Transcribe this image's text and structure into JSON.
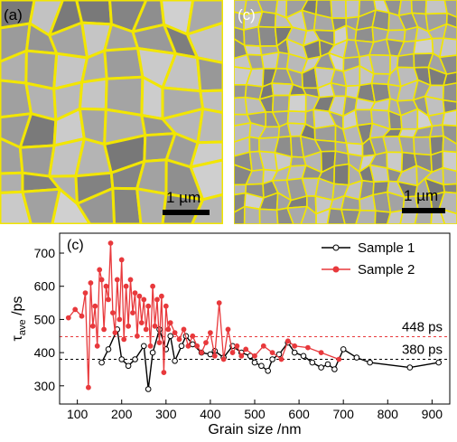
{
  "panels": {
    "left": {
      "label": "(a)",
      "scalebar_label": "1 µm"
    },
    "right": {
      "label": "(c)",
      "scalebar_label": "1 µm"
    }
  },
  "colors": {
    "grain_boundary": "#f2e600",
    "sample1": "#000000",
    "sample2": "#e8393c",
    "sem_background": "#8c8c8c"
  },
  "chart_data": {
    "type": "line",
    "panel_label": "(c)",
    "title": "",
    "xlabel": "Grain size /nm",
    "ylabel_main": "τ",
    "ylabel_sub": "ave",
    "ylabel_unit": " /ps",
    "xlim": [
      60,
      940
    ],
    "ylim": [
      245,
      760
    ],
    "xticks": [
      100,
      200,
      300,
      400,
      500,
      600,
      700,
      800,
      900
    ],
    "yticks": [
      300,
      400,
      500,
      600,
      700
    ],
    "legend_position": "top-right",
    "series": [
      {
        "name": "Sample 1",
        "color": "#000000",
        "marker": "open-circle",
        "x": [
          155,
          170,
          190,
          200,
          215,
          230,
          250,
          260,
          270,
          285,
          300,
          310,
          320,
          335,
          345,
          360,
          380,
          400,
          410,
          430,
          450,
          470,
          490,
          500,
          515,
          530,
          540,
          555,
          575,
          590,
          610,
          630,
          650,
          665,
          680,
          700,
          730,
          760,
          850,
          915
        ],
        "y": [
          370,
          410,
          470,
          380,
          360,
          380,
          420,
          290,
          400,
          470,
          410,
          450,
          375,
          420,
          450,
          425,
          400,
          395,
          405,
          385,
          420,
          400,
          390,
          370,
          360,
          345,
          380,
          395,
          430,
          400,
          390,
          370,
          355,
          365,
          350,
          410,
          385,
          370,
          355,
          370
        ]
      },
      {
        "name": "Sample 2",
        "color": "#e8393c",
        "marker": "filled-circle",
        "x": [
          80,
          95,
          110,
          118,
          125,
          130,
          135,
          140,
          145,
          150,
          155,
          160,
          165,
          170,
          175,
          180,
          185,
          190,
          195,
          200,
          205,
          210,
          215,
          220,
          225,
          230,
          235,
          240,
          245,
          250,
          255,
          260,
          265,
          270,
          275,
          280,
          285,
          290,
          295,
          300,
          305,
          310,
          320,
          330,
          340,
          350,
          360,
          370,
          380,
          390,
          400,
          410,
          420,
          430,
          440,
          450,
          460,
          470,
          480,
          500,
          520,
          540,
          560,
          575,
          590,
          620,
          650,
          690
        ],
        "y": [
          505,
          530,
          510,
          580,
          295,
          610,
          480,
          540,
          420,
          650,
          620,
          470,
          600,
          560,
          730,
          520,
          460,
          620,
          500,
          680,
          440,
          600,
          480,
          620,
          520,
          580,
          450,
          570,
          490,
          560,
          470,
          540,
          420,
          600,
          480,
          560,
          430,
          570,
          340,
          540,
          470,
          490,
          460,
          440,
          470,
          420,
          450,
          420,
          400,
          430,
          460,
          390,
          550,
          380,
          470,
          400,
          420,
          390,
          410,
          390,
          420,
          400,
          380,
          435,
          420,
          415,
          400,
          380
        ]
      }
    ],
    "reference_lines": [
      {
        "value": 448,
        "label": "448 ps",
        "color": "#e8393c",
        "style": "dashed"
      },
      {
        "value": 380,
        "label": "380 ps",
        "color": "#000000",
        "style": "dashed"
      }
    ]
  }
}
